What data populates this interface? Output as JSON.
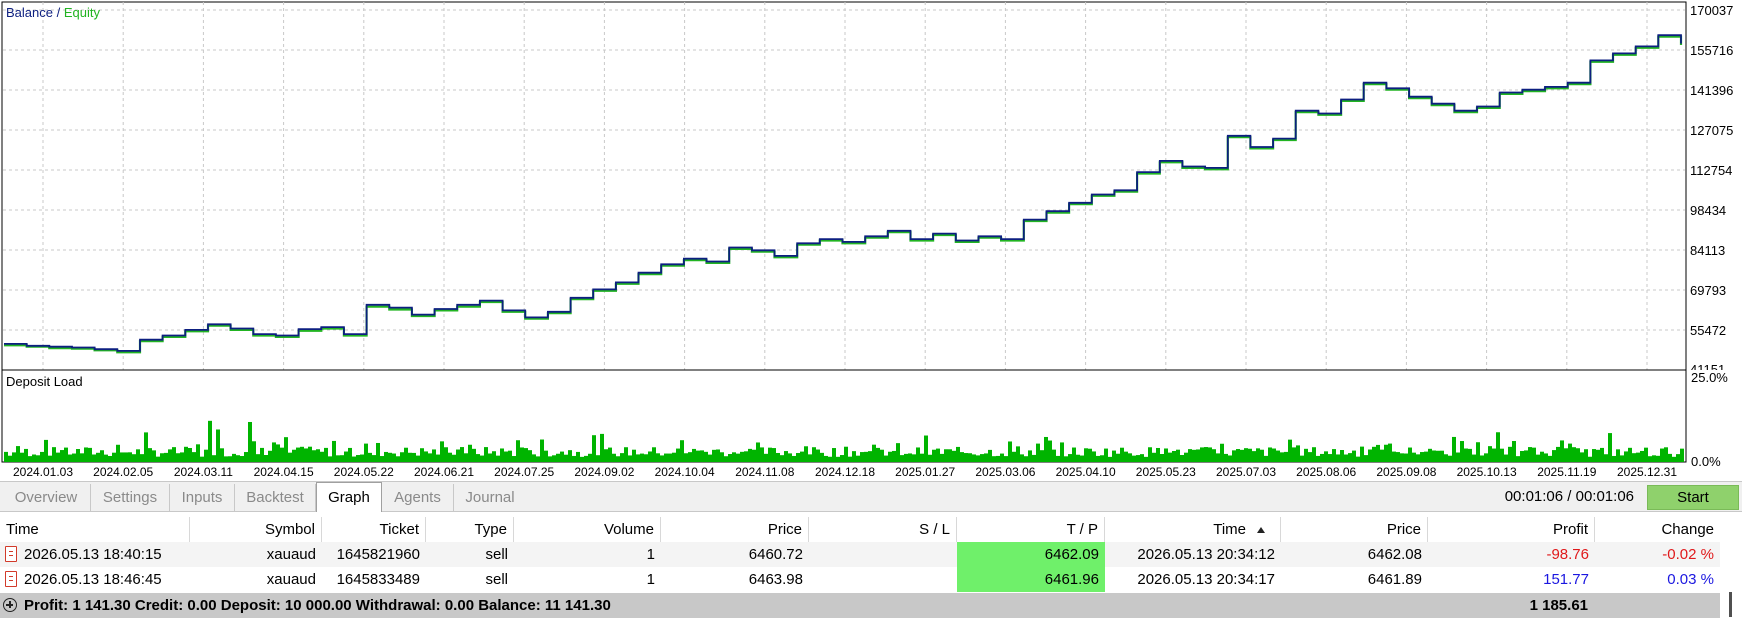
{
  "chart": {
    "legend_balance": "Balance",
    "legend_sep": " / ",
    "legend_equity": "Equity",
    "deposit_label": "Deposit Load",
    "deposit_top": "25.0%",
    "deposit_bottom": "0.0%",
    "colors": {
      "balance": "#0d1f80",
      "equity": "#22b422",
      "bars": "#00b400",
      "grid": "#c8c8c8"
    }
  },
  "chart_data": {
    "type": "line",
    "title": "",
    "series": [
      {
        "name": "Balance",
        "x_start": "2024.01.03",
        "x_end": "2026.01.10",
        "values": [
          50500,
          49800,
          49500,
          49200,
          48600,
          48000,
          52000,
          53500,
          55500,
          57500,
          56000,
          54000,
          53500,
          55800,
          56500,
          54000,
          64500,
          63500,
          61000,
          63000,
          64500,
          66000,
          62500,
          60000,
          62000,
          67000,
          70000,
          72500,
          76000,
          79000,
          81000,
          80000,
          85000,
          84000,
          82000,
          86500,
          88000,
          87000,
          89000,
          91000,
          88000,
          90000,
          87500,
          89000,
          88000,
          95000,
          98000,
          101000,
          104000,
          105500,
          112000,
          116000,
          114000,
          113500,
          125000,
          121000,
          124000,
          134000,
          133000,
          138000,
          144000,
          142000,
          139000,
          136500,
          134000,
          135500,
          140500,
          141500,
          142500,
          144000,
          152000,
          154500,
          157000,
          161000,
          158000
        ]
      },
      {
        "name": "Equity",
        "x_start": "2024.01.03",
        "x_end": "2026.01.10",
        "values": [
          50000,
          49500,
          49000,
          48800,
          48200,
          47500,
          51500,
          53000,
          55000,
          57000,
          55500,
          53500,
          53000,
          55200,
          56000,
          53500,
          63800,
          62800,
          60500,
          62500,
          63800,
          65500,
          62000,
          59500,
          61500,
          66500,
          69500,
          72000,
          75500,
          78500,
          80500,
          79500,
          84500,
          83500,
          81500,
          86000,
          87500,
          86500,
          88500,
          90500,
          87500,
          89500,
          87000,
          88500,
          87500,
          94500,
          97500,
          100500,
          103500,
          105000,
          111500,
          115500,
          113500,
          113000,
          124500,
          120500,
          123500,
          133500,
          132500,
          137500,
          143500,
          141500,
          138500,
          136000,
          133500,
          135000,
          140000,
          141000,
          142000,
          143500,
          151500,
          154000,
          156500,
          160500,
          157500
        ]
      }
    ],
    "y_ticks": [
      41151,
      55472,
      69793,
      84113,
      98434,
      112754,
      127075,
      141396,
      155716,
      170037
    ],
    "ylim": [
      41151,
      170037
    ],
    "x_ticks": [
      "2024.01.03",
      "2024.02.05",
      "2024.03.11",
      "2024.04.15",
      "2024.05.22",
      "2024.06.21",
      "2024.07.25",
      "2024.09.02",
      "2024.10.04",
      "2024.11.08",
      "2024.12.18",
      "2025.01.27",
      "2025.03.06",
      "2025.04.10",
      "2025.05.23",
      "2025.07.03",
      "2025.08.06",
      "2025.09.08",
      "2025.10.13",
      "2025.11.19",
      "2025.12.31"
    ],
    "grid": true,
    "legend_position": "top-left",
    "deposit_load": {
      "name": "Deposit Load",
      "ylim": [
        0,
        25
      ],
      "unit": "%"
    }
  },
  "tabs": [
    {
      "label": "Overview",
      "active": false
    },
    {
      "label": "Settings",
      "active": false
    },
    {
      "label": "Inputs",
      "active": false
    },
    {
      "label": "Backtest",
      "active": false
    },
    {
      "label": "Graph",
      "active": true
    },
    {
      "label": "Agents",
      "active": false
    },
    {
      "label": "Journal",
      "active": false
    }
  ],
  "timer": "00:01:06 / 00:01:06",
  "start_label": "Start",
  "table": {
    "headers": [
      "Time",
      "Symbol",
      "Ticket",
      "Type",
      "Volume",
      "Price",
      "S / L",
      "T / P",
      "Time",
      "Price",
      "Profit",
      "Change"
    ],
    "rows": [
      {
        "time": "2026.05.13 18:40:15",
        "symbol": "xauaud",
        "ticket": "1645821960",
        "type": "sell",
        "volume": "1",
        "price": "6460.72",
        "sl": "",
        "tp": "6462.09",
        "time2": "2026.05.13 20:34:12",
        "price2": "6462.08",
        "profit": "-98.76",
        "change": "-0.02 %",
        "sign": "neg"
      },
      {
        "time": "2026.05.13 18:46:45",
        "symbol": "xauaud",
        "ticket": "1645833489",
        "type": "sell",
        "volume": "1",
        "price": "6463.98",
        "sl": "",
        "tp": "6461.96",
        "time2": "2026.05.13 20:34:17",
        "price2": "6461.89",
        "profit": "151.77",
        "change": "0.03 %",
        "sign": "pos"
      }
    ]
  },
  "summary": {
    "text": "Profit: 1 141.30  Credit: 0.00  Deposit: 10 000.00  Withdrawal: 0.00  Balance: 11 141.30",
    "total": "1 185.61"
  }
}
